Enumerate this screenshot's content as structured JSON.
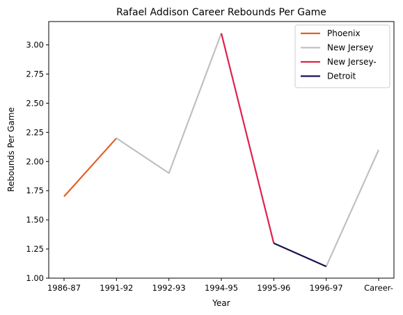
{
  "chart_data": {
    "type": "line",
    "title": "Rafael Addison Career Rebounds Per Game",
    "xlabel": "Year",
    "ylabel": "Rebounds Per Game",
    "categories": [
      "1986-87",
      "1991-92",
      "1992-93",
      "1994-95",
      "1995-96",
      "1996-97",
      "Career-"
    ],
    "ylim": [
      1.0,
      3.2
    ],
    "yticks": [
      1.0,
      1.25,
      1.5,
      1.75,
      2.0,
      2.25,
      2.5,
      2.75,
      3.0
    ],
    "ytick_labels": [
      "1.00",
      "1.25",
      "1.50",
      "1.75",
      "2.00",
      "2.25",
      "2.50",
      "2.75",
      "3.00"
    ],
    "grid": false,
    "legend_position": "top-right",
    "series": [
      {
        "name": "Phoenix",
        "color": "#e06028",
        "points": [
          [
            "1986-87",
            1.7
          ],
          [
            "1991-92",
            2.2
          ]
        ]
      },
      {
        "name": "New Jersey",
        "color": "#c0c0c0",
        "points": [
          [
            "1991-92",
            2.2
          ],
          [
            "1992-93",
            1.9
          ],
          [
            "1994-95",
            3.1
          ]
        ]
      },
      {
        "name": "New Jersey",
        "color": "#c0c0c0",
        "points": [
          [
            "1996-97",
            1.1
          ],
          [
            "Career-",
            2.1
          ]
        ],
        "legend": false
      },
      {
        "name": "New Jersey-",
        "color": "#e0204a",
        "points": [
          [
            "1994-95",
            3.1
          ],
          [
            "1995-96",
            1.3
          ]
        ]
      },
      {
        "name": "Detroit",
        "color": "#1a1050",
        "points": [
          [
            "1995-96",
            1.3
          ],
          [
            "1996-97",
            1.1
          ]
        ]
      }
    ]
  }
}
